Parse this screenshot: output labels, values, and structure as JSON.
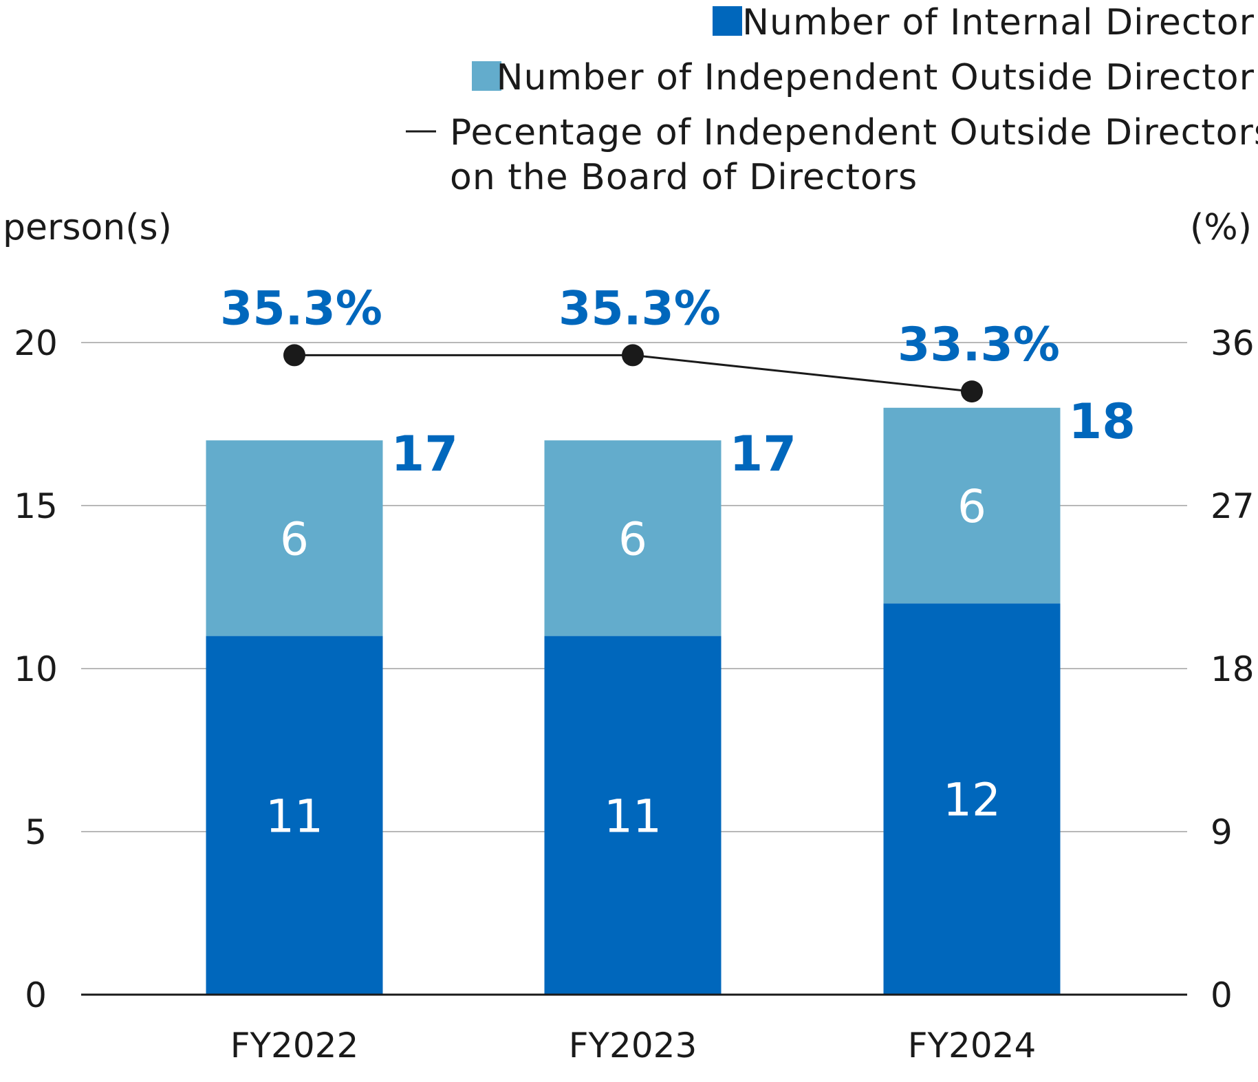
{
  "chart_data": {
    "type": "bar",
    "stacked": true,
    "categories": [
      "FY2022",
      "FY2023",
      "FY2024"
    ],
    "series": [
      {
        "name": "Number of Internal Director",
        "values": [
          11,
          11,
          12
        ],
        "color": "#0067BC",
        "axis": "left"
      },
      {
        "name": "Number of Independent Outside Director",
        "values": [
          6,
          6,
          6
        ],
        "color": "#63ACCC",
        "axis": "left"
      }
    ],
    "totals": [
      "17",
      "17",
      "18"
    ],
    "line_series": {
      "name_lines": [
        "Pecentage of Independent Outside Directors",
        "on the Board of Directors"
      ],
      "values": [
        35.3,
        35.3,
        33.3
      ],
      "labels": [
        "35.3%",
        "35.3%",
        "33.3%"
      ],
      "color": "#1a1a1a",
      "axis": "right"
    },
    "ylabel_left": "person(s)",
    "ylabel_right": "(%)",
    "ylim_left": [
      0,
      20
    ],
    "ylim_right": [
      0,
      36
    ],
    "yticks_left": [
      "0",
      "5",
      "10",
      "15",
      "20"
    ],
    "yticks_right": [
      "0",
      "9",
      "18",
      "27",
      "36"
    ],
    "grid": true,
    "legend_position": "top-right",
    "label_color": "#0067BC"
  }
}
